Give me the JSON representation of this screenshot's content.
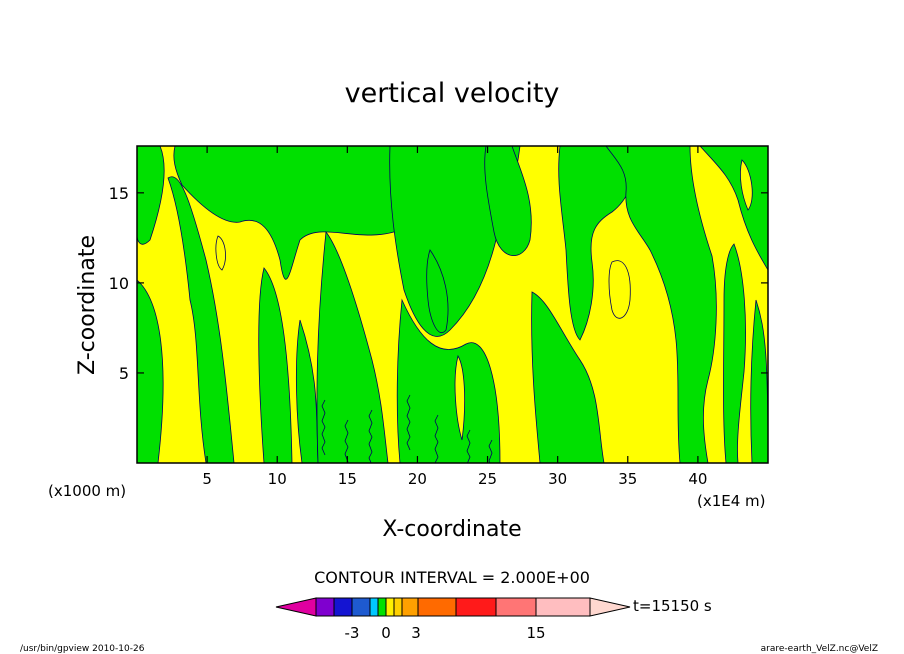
{
  "chart_data": {
    "type": "heatmap",
    "title": "vertical velocity",
    "xlabel": "X-coordinate",
    "ylabel": "Z-coordinate",
    "x_unit_label": "(x1E4 m)",
    "y_unit_label": "(x1000 m)",
    "xlim": [
      0,
      45
    ],
    "ylim": [
      0,
      17.6
    ],
    "x_ticks": [
      5,
      10,
      15,
      20,
      25,
      30,
      35,
      40
    ],
    "y_ticks": [
      5,
      10,
      15
    ],
    "contour_interval_label": "CONTOUR INTERVAL = 2.000E+00",
    "time_label": "t=15150 s",
    "colorbar": {
      "tick_labels": [
        {
          "value": -3,
          "label": "-3"
        },
        {
          "value": 0,
          "label": "0"
        },
        {
          "value": 3,
          "label": "3"
        },
        {
          "value": 15,
          "label": "15"
        }
      ],
      "bins": [
        {
          "color": "#7f00cf"
        },
        {
          "color": "#1414d2"
        },
        {
          "color": "#1e5ad0"
        },
        {
          "color": "#00c8ff"
        },
        {
          "color": "#00e000"
        },
        {
          "color": "#fff000"
        },
        {
          "color": "#ffd000"
        },
        {
          "color": "#ffa000"
        },
        {
          "color": "#ff6a00"
        },
        {
          "color": "#ff1a1a"
        },
        {
          "color": "#ff7575"
        },
        {
          "color": "#ffbec0"
        }
      ],
      "under_color": "#e000a0",
      "over_color": "#ffd8d0",
      "colors": {
        "positive": "#ffff00",
        "negative": "#00e000"
      }
    }
  },
  "footer": {
    "left": "/usr/bin/gpview   2010-10-26",
    "right": "arare-earth_VelZ.nc@VelZ"
  }
}
